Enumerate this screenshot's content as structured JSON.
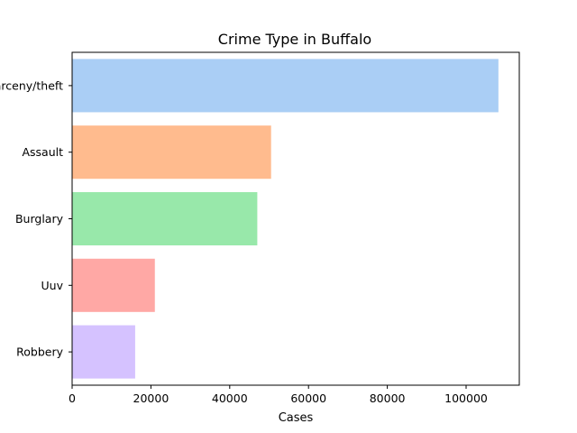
{
  "chart_data": {
    "type": "bar",
    "orientation": "horizontal",
    "title": "Crime Type in Buffalo",
    "xlabel": "Cases",
    "ylabel": "",
    "categories": [
      "Larceny/theft",
      "Assault",
      "Burglary",
      "Uuv",
      "Robbery"
    ],
    "values": [
      108200,
      50500,
      47000,
      21000,
      16000
    ],
    "colors": [
      "#a1c9f4",
      "#ffb482",
      "#8de5a1",
      "#ff9f9b",
      "#d0bbff"
    ],
    "bar_opacity": 0.9,
    "xlim": [
      0,
      113500
    ],
    "xticks": [
      0,
      20000,
      40000,
      60000,
      80000,
      100000
    ],
    "grid": false,
    "legend": "none"
  }
}
